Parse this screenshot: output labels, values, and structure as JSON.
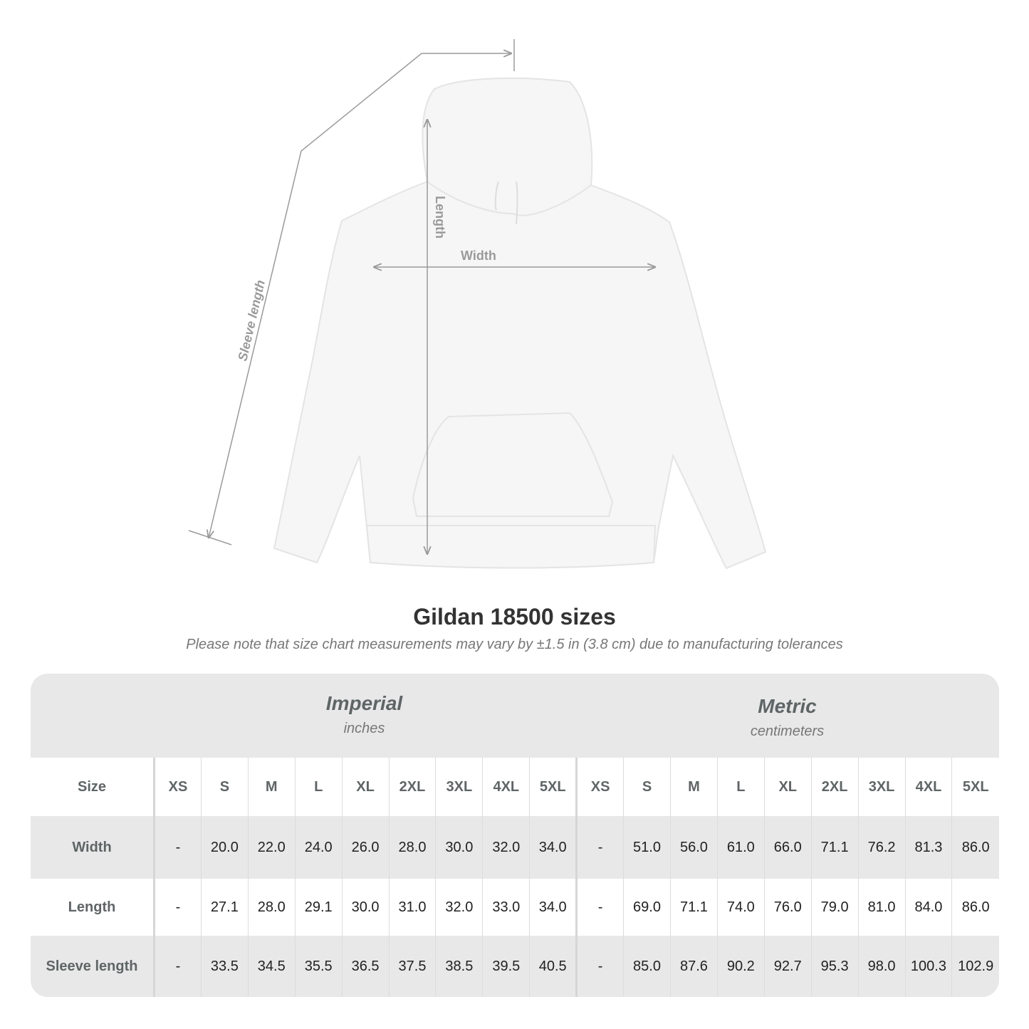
{
  "diagram": {
    "labels": {
      "length": "Length",
      "width": "Width",
      "sleeve": "Sleeve length"
    },
    "colors": {
      "garment": "#f6f6f6",
      "measure_line": "#9a9a9a"
    }
  },
  "title": "Gildan 18500 sizes",
  "subtitle": "Please note that size chart measurements may vary by ±1.5 in (3.8 cm) due to manufacturing tolerances",
  "table": {
    "imperial": {
      "name": "Imperial",
      "unit": "inches"
    },
    "metric": {
      "name": "Metric",
      "unit": "centimeters"
    },
    "size_label": "Size",
    "sizes": [
      "XS",
      "S",
      "M",
      "L",
      "XL",
      "2XL",
      "3XL",
      "4XL",
      "5XL"
    ],
    "rows": [
      {
        "label": "Width",
        "imperial": [
          "-",
          "20.0",
          "22.0",
          "24.0",
          "26.0",
          "28.0",
          "30.0",
          "32.0",
          "34.0"
        ],
        "metric": [
          "-",
          "51.0",
          "56.0",
          "61.0",
          "66.0",
          "71.1",
          "76.2",
          "81.3",
          "86.0"
        ]
      },
      {
        "label": "Length",
        "imperial": [
          "-",
          "27.1",
          "28.0",
          "29.1",
          "30.0",
          "31.0",
          "32.0",
          "33.0",
          "34.0"
        ],
        "metric": [
          "-",
          "69.0",
          "71.1",
          "74.0",
          "76.0",
          "79.0",
          "81.0",
          "84.0",
          "86.0"
        ]
      },
      {
        "label": "Sleeve length",
        "imperial": [
          "-",
          "33.5",
          "34.5",
          "35.5",
          "36.5",
          "37.5",
          "38.5",
          "39.5",
          "40.5"
        ],
        "metric": [
          "-",
          "85.0",
          "87.6",
          "90.2",
          "92.7",
          "95.3",
          "98.0",
          "100.3",
          "102.9"
        ]
      }
    ],
    "colors": {
      "band": "#e8e8e8",
      "label_text": "#5f6566",
      "value_text": "#222222"
    }
  }
}
